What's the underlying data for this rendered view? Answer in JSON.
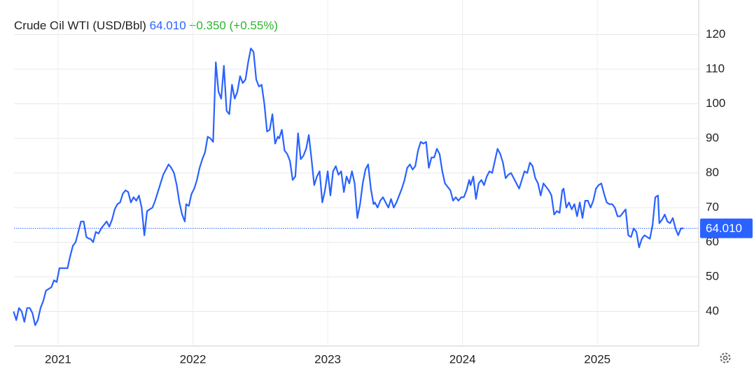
{
  "chart_data": {
    "type": "line",
    "title": "Crude Oil WTI (USD/Bbl)",
    "last": {
      "value": 64.01,
      "label": "64.010"
    },
    "change": "+0.350",
    "change_pct": "(+0.55%)",
    "color": "#2962ff",
    "grid": true,
    "xlim": [
      2020.673,
      2025.752
    ],
    "xticks": [
      2021,
      2022,
      2023,
      2024,
      2025
    ],
    "ylim": [
      30,
      130
    ],
    "yticks": [
      40,
      50,
      60,
      70,
      80,
      90,
      100,
      110,
      120
    ],
    "x": [
      2020.67,
      2020.69,
      2020.71,
      2020.73,
      2020.75,
      2020.77,
      2020.79,
      2020.81,
      2020.83,
      2020.85,
      2020.87,
      2020.89,
      2020.91,
      2020.93,
      2020.95,
      2020.97,
      2020.99,
      2021.01,
      2021.03,
      2021.05,
      2021.07,
      2021.09,
      2021.11,
      2021.13,
      2021.15,
      2021.17,
      2021.19,
      2021.21,
      2021.23,
      2021.24,
      2021.26,
      2021.28,
      2021.3,
      2021.32,
      2021.34,
      2021.36,
      2021.38,
      2021.4,
      2021.42,
      2021.44,
      2021.46,
      2021.48,
      2021.5,
      2021.52,
      2021.54,
      2021.56,
      2021.58,
      2021.6,
      2021.62,
      2021.64,
      2021.66,
      2021.68,
      2021.7,
      2021.72,
      2021.74,
      2021.76,
      2021.78,
      2021.8,
      2021.82,
      2021.84,
      2021.86,
      2021.88,
      2021.9,
      2021.92,
      2021.94,
      2021.95,
      2021.97,
      2021.99,
      2022.01,
      2022.03,
      2022.05,
      2022.07,
      2022.09,
      2022.11,
      2022.13,
      2022.15,
      2022.17,
      2022.19,
      2022.21,
      2022.23,
      2022.25,
      2022.27,
      2022.29,
      2022.31,
      2022.33,
      2022.35,
      2022.37,
      2022.39,
      2022.41,
      2022.43,
      2022.45,
      2022.47,
      2022.49,
      2022.51,
      2022.53,
      2022.55,
      2022.57,
      2022.59,
      2022.61,
      2022.63,
      2022.64,
      2022.66,
      2022.68,
      2022.7,
      2022.72,
      2022.74,
      2022.76,
      2022.78,
      2022.8,
      2022.82,
      2022.84,
      2022.86,
      2022.88,
      2022.9,
      2022.92,
      2022.94,
      2022.96,
      2022.98,
      2023,
      2023.02,
      2023.04,
      2023.06,
      2023.08,
      2023.1,
      2023.12,
      2023.14,
      2023.16,
      2023.18,
      2023.2,
      2023.22,
      2023.24,
      2023.26,
      2023.28,
      2023.3,
      2023.32,
      2023.34,
      2023.35,
      2023.37,
      2023.39,
      2023.41,
      2023.43,
      2023.45,
      2023.47,
      2023.49,
      2023.51,
      2023.53,
      2023.55,
      2023.57,
      2023.59,
      2023.61,
      2023.63,
      2023.65,
      2023.67,
      2023.69,
      2023.71,
      2023.73,
      2023.75,
      2023.77,
      2023.79,
      2023.81,
      2023.83,
      2023.85,
      2023.87,
      2023.89,
      2023.91,
      2023.93,
      2023.95,
      2023.97,
      2023.99,
      2024.01,
      2024.03,
      2024.05,
      2024.06,
      2024.08,
      2024.1,
      2024.12,
      2024.14,
      2024.16,
      2024.18,
      2024.2,
      2024.22,
      2024.24,
      2024.26,
      2024.28,
      2024.3,
      2024.32,
      2024.34,
      2024.36,
      2024.38,
      2024.4,
      2024.42,
      2024.44,
      2024.46,
      2024.48,
      2024.5,
      2024.52,
      2024.54,
      2024.56,
      2024.58,
      2024.6,
      2024.62,
      2024.64,
      2024.66,
      2024.68,
      2024.7,
      2024.72,
      2024.74,
      2024.75,
      2024.77,
      2024.79,
      2024.81,
      2024.83,
      2024.85,
      2024.87,
      2024.89,
      2024.91,
      2024.93,
      2024.95,
      2024.97,
      2024.99,
      2025.01,
      2025.03,
      2025.05,
      2025.07,
      2025.09,
      2025.11,
      2025.13,
      2025.15,
      2025.17,
      2025.19,
      2025.21,
      2025.23,
      2025.25,
      2025.27,
      2025.29,
      2025.31,
      2025.33,
      2025.35,
      2025.37,
      2025.39,
      2025.41,
      2025.43,
      2025.45,
      2025.46,
      2025.48,
      2025.5,
      2025.52,
      2025.54,
      2025.56,
      2025.58,
      2025.6,
      2025.62,
      2025.64
    ],
    "values": [
      40,
      37.5,
      41,
      40,
      37,
      41,
      41,
      39.5,
      36,
      37.5,
      41,
      43,
      46,
      46.5,
      47,
      49,
      48.5,
      52.5,
      52.5,
      52.5,
      52.5,
      56,
      59,
      60,
      63,
      66,
      66,
      61.5,
      61,
      61,
      60,
      63,
      62.5,
      64,
      65,
      66,
      64.5,
      66.5,
      69.5,
      71,
      71.5,
      74,
      75,
      74.5,
      71.5,
      73,
      72,
      73.5,
      70,
      62,
      69,
      69.5,
      70,
      72,
      74.5,
      77,
      79.5,
      81,
      82.5,
      81.5,
      80,
      76.5,
      71.5,
      68,
      66,
      71,
      70.5,
      74,
      75.5,
      78,
      81.5,
      84,
      86,
      90.5,
      90,
      89,
      112,
      103.5,
      101.5,
      111,
      98,
      97,
      105.5,
      101.5,
      103.5,
      108,
      106,
      107,
      112,
      116,
      115,
      107,
      105,
      105.5,
      100,
      92,
      92.5,
      97,
      88.5,
      90.5,
      90,
      92.5,
      86.5,
      85.5,
      83.5,
      78,
      79,
      91.5,
      84,
      85,
      87,
      91,
      84,
      76.5,
      79,
      80.5,
      71.5,
      75,
      80.5,
      73.5,
      80.5,
      82,
      79.5,
      80.5,
      74.5,
      79,
      77,
      80.5,
      77,
      67,
      71,
      77,
      81,
      82.5,
      75.5,
      71,
      71.5,
      70,
      72,
      73,
      71.5,
      70,
      72.5,
      70,
      71.5,
      73.5,
      75.5,
      78,
      81.5,
      82.5,
      81,
      82,
      86.5,
      89,
      88.5,
      89,
      81.5,
      84.5,
      84.5,
      87,
      85.5,
      80.5,
      77,
      76,
      75,
      72,
      73,
      72,
      73,
      73,
      75,
      78,
      76.5,
      79,
      72.5,
      77,
      78,
      76.5,
      79,
      80.5,
      80,
      83.5,
      87,
      85.5,
      83,
      78.5,
      79.5,
      80,
      78.5,
      77,
      75.5,
      78,
      80.5,
      80,
      83,
      82,
      78.5,
      77,
      73.5,
      77,
      76,
      75,
      73.5,
      68,
      69,
      68.5,
      75,
      75.5,
      70,
      71.5,
      69.5,
      71,
      67.5,
      71.5,
      67,
      72,
      72,
      70,
      72,
      75.5,
      76.5,
      77,
      74,
      71.5,
      71,
      71,
      70,
      67.5,
      67.5,
      68.5,
      69.5,
      62,
      61.5,
      64,
      63,
      58.5,
      61,
      62,
      61.5,
      61,
      65,
      73,
      73.5,
      65.5,
      66.5,
      68,
      66,
      65.5,
      67,
      64,
      62,
      64,
      64.01
    ]
  }
}
